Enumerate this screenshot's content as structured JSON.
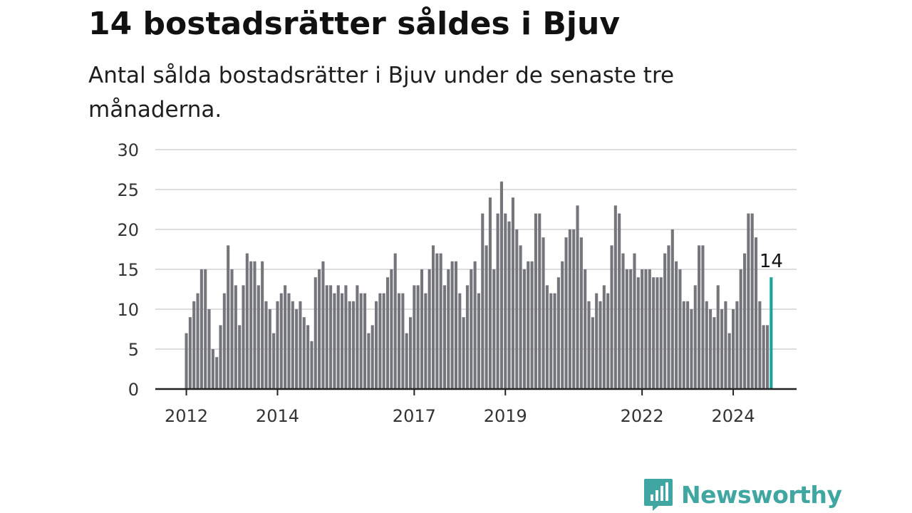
{
  "header": {
    "title": "14 bostadsrätter såldes i Bjuv",
    "subtitle": "Antal sålda bostadsrätter i Bjuv under de senaste tre månaderna."
  },
  "brand": {
    "name": "Newsworthy"
  },
  "colors": {
    "bar": "#75757c",
    "highlight": "#1ba39c",
    "grid": "#dddddd",
    "axis": "#222222",
    "brand": "#3fa6a1"
  },
  "chart_data": {
    "type": "bar",
    "title": "14 bostadsrätter såldes i Bjuv",
    "subtitle": "Antal sålda bostadsrätter i Bjuv under de senaste tre månaderna.",
    "ylim": [
      0,
      30
    ],
    "yticks": [
      0,
      5,
      10,
      15,
      20,
      25,
      30
    ],
    "xticks": [
      {
        "label": "2012",
        "index": 0
      },
      {
        "label": "2014",
        "index": 24
      },
      {
        "label": "2017",
        "index": 60
      },
      {
        "label": "2019",
        "index": 84
      },
      {
        "label": "2022",
        "index": 120
      },
      {
        "label": "2024",
        "index": 144
      }
    ],
    "start": "2012-01",
    "grid": true,
    "last_value_label": "14",
    "values": [
      7,
      9,
      11,
      12,
      15,
      15,
      10,
      5,
      4,
      8,
      12,
      18,
      15,
      13,
      8,
      13,
      17,
      16,
      16,
      13,
      16,
      11,
      10,
      7,
      11,
      12,
      13,
      12,
      11,
      10,
      11,
      9,
      8,
      6,
      14,
      15,
      16,
      13,
      13,
      12,
      13,
      12,
      13,
      11,
      11,
      13,
      12,
      12,
      7,
      8,
      11,
      12,
      12,
      14,
      15,
      17,
      12,
      12,
      7,
      9,
      13,
      13,
      15,
      12,
      15,
      18,
      17,
      17,
      13,
      15,
      16,
      16,
      12,
      9,
      13,
      15,
      16,
      12,
      22,
      18,
      24,
      15,
      22,
      26,
      22,
      21,
      24,
      20,
      18,
      15,
      16,
      16,
      22,
      22,
      19,
      13,
      12,
      12,
      14,
      16,
      19,
      20,
      20,
      23,
      19,
      15,
      11,
      9,
      12,
      11,
      13,
      12,
      18,
      23,
      22,
      17,
      15,
      15,
      17,
      14,
      15,
      15,
      15,
      14,
      14,
      14,
      17,
      18,
      20,
      16,
      15,
      11,
      11,
      10,
      13,
      18,
      18,
      11,
      10,
      9,
      13,
      10,
      11,
      7,
      10,
      11,
      15,
      17,
      22,
      22,
      19,
      11,
      8,
      8,
      14
    ]
  }
}
